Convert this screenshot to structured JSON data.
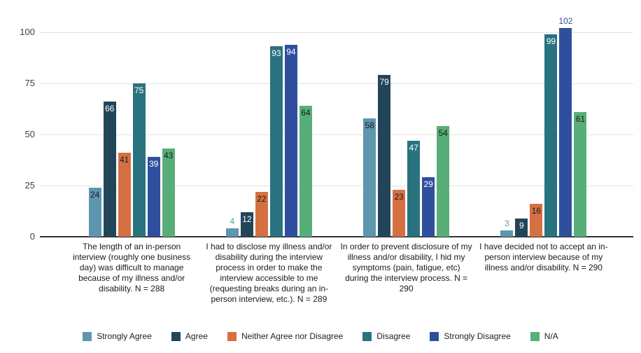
{
  "chart_data": {
    "type": "bar",
    "title": "",
    "xlabel": "",
    "ylabel": "",
    "ylim": [
      0,
      100
    ],
    "yticks": [
      0,
      25,
      50,
      75,
      100
    ],
    "grid": true,
    "legend_position": "bottom",
    "background_color": "#ffffff",
    "gridline_color": "#e3e3e3",
    "axis_line_color": "#333333",
    "categories": [
      "The length of an in-person interview (roughly one business day) was difficult to manage because of my illness and/or disability. N = 288",
      "I had to disclose my illness and/or disability during the interview process in order to make the interview accessible to me (requesting breaks during an in-person interview, etc.). N = 289",
      "In order to prevent disclosure of my illness and/or disability, I hid my symptoms (pain, fatigue, etc) during the interview process. N = 290",
      "I have decided not to accept an in-person interview because of my illness and/or disability. N = 290"
    ],
    "series": [
      {
        "name": "Strongly Agree",
        "color": "#5e95af",
        "inside_label_color": "#1a1a1a",
        "values": [
          24,
          4,
          58,
          3
        ]
      },
      {
        "name": "Agree",
        "color": "#23455a",
        "inside_label_color": "#ffffff",
        "values": [
          66,
          12,
          79,
          9
        ]
      },
      {
        "name": "Neither Agree nor Disagree",
        "color": "#d57043",
        "inside_label_color": "#1a1a1a",
        "values": [
          41,
          22,
          23,
          16
        ]
      },
      {
        "name": "Disagree",
        "color": "#28737f",
        "inside_label_color": "#ffffff",
        "values": [
          75,
          93,
          47,
          99
        ]
      },
      {
        "name": "Strongly Disagree",
        "color": "#2f4f9e",
        "inside_label_color": "#ffffff",
        "values": [
          39,
          94,
          29,
          102
        ]
      },
      {
        "name": "N/A",
        "color": "#58ae78",
        "inside_label_color": "#1a1a1a",
        "values": [
          43,
          64,
          54,
          61
        ]
      }
    ]
  }
}
